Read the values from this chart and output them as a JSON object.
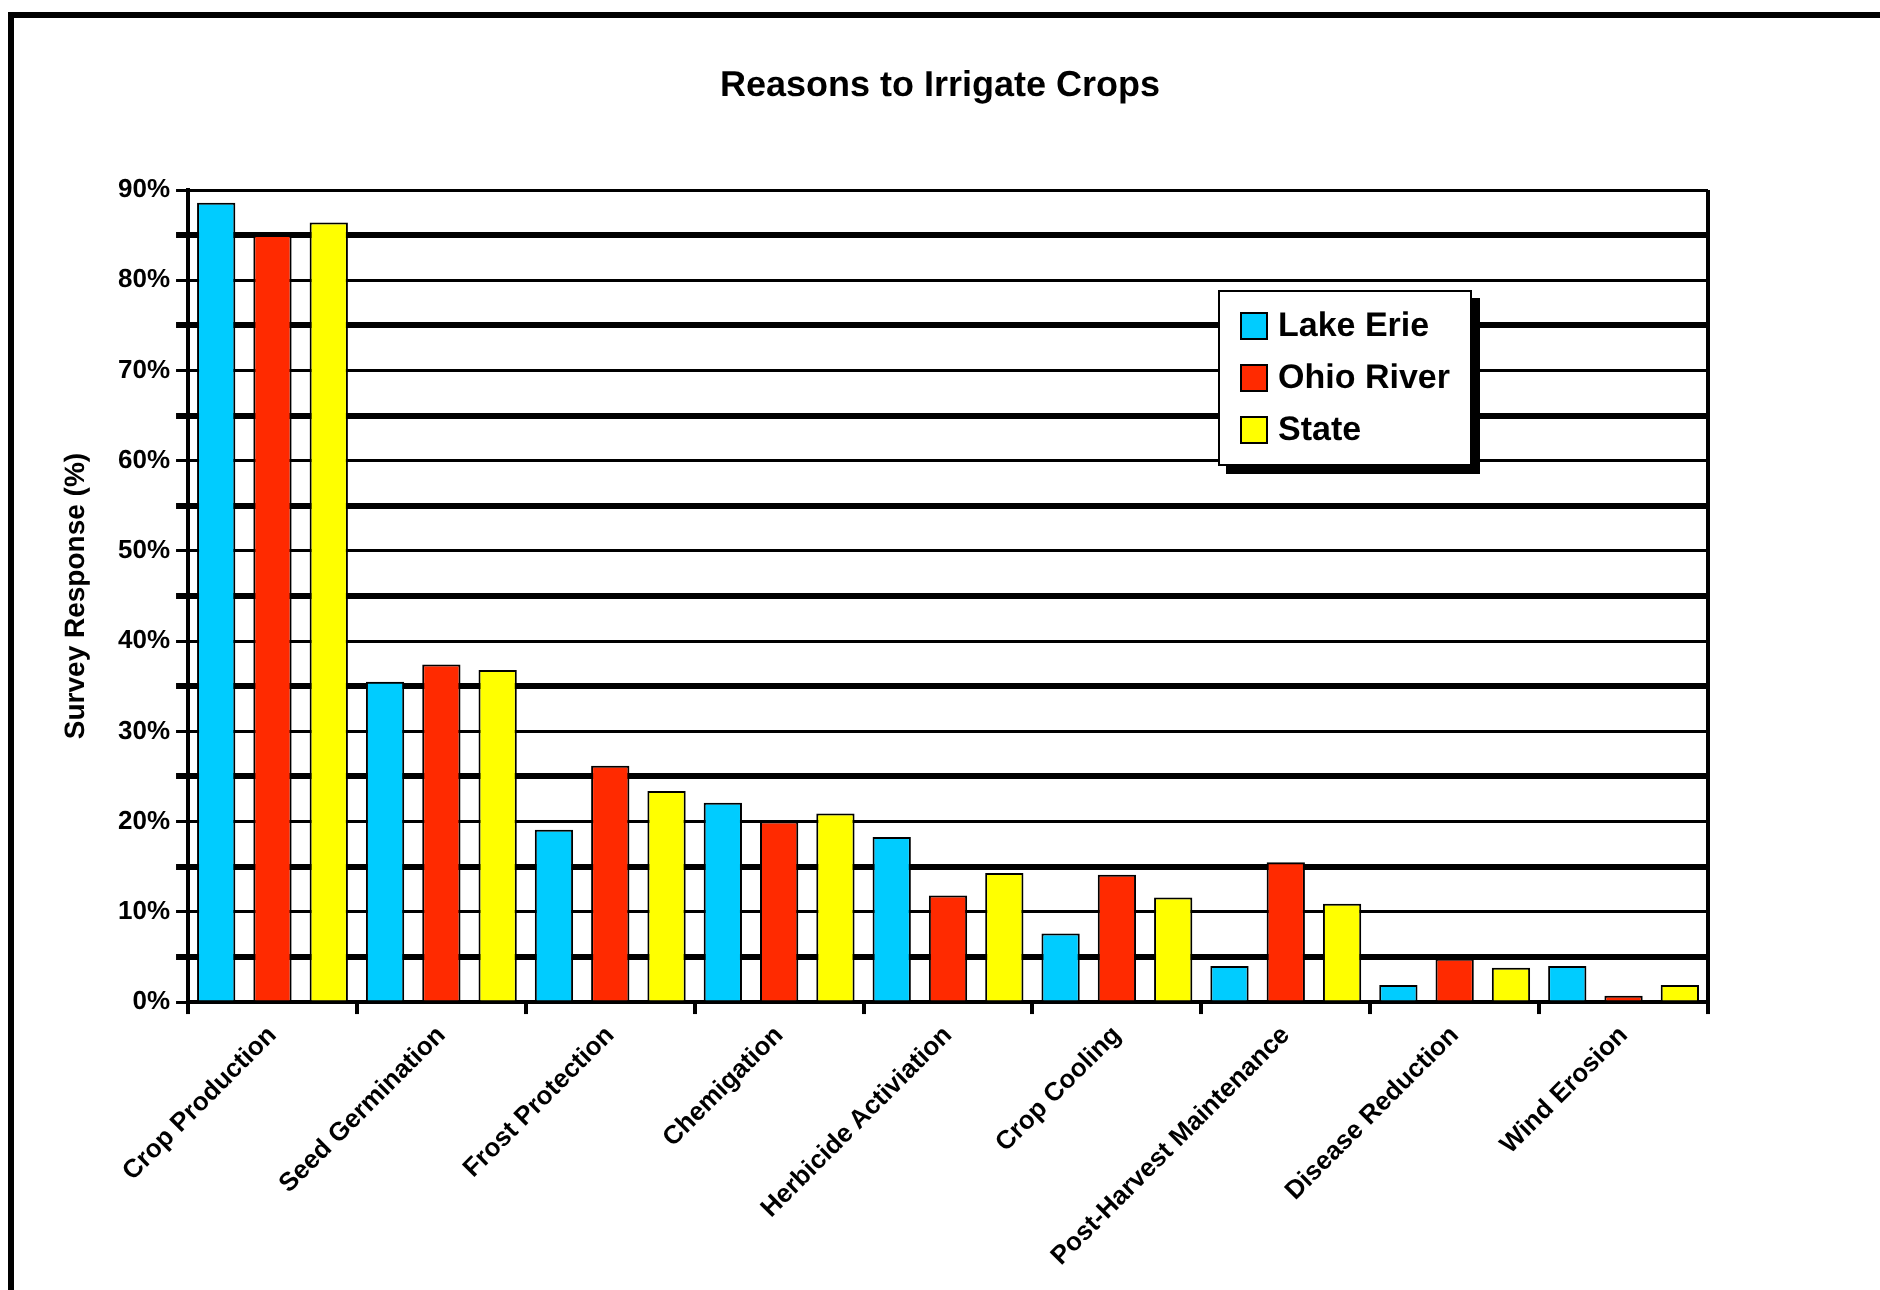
{
  "chart_data": {
    "type": "bar",
    "title": "Reasons to Irrigate Crops",
    "ylabel": "Survey Response (%)",
    "categories": [
      "Crop Production",
      "Seed Germination",
      "Frost Protection",
      "Chemigation",
      "Herbicide Activiation",
      "Crop Cooling",
      "Post-Harvest Maintenance",
      "Disease Reduction",
      "Wind Erosion"
    ],
    "series": [
      {
        "name": "Lake Erie",
        "color": "#00ccff",
        "values": [
          88.6,
          35.5,
          19.1,
          22.1,
          18.3,
          7.6,
          4.0,
          1.9,
          4.0
        ]
      },
      {
        "name": "Ohio River",
        "color": "#ff2a00",
        "values": [
          85.0,
          37.4,
          26.2,
          20.0,
          11.8,
          14.1,
          15.5,
          4.8,
          0.7
        ]
      },
      {
        "name": "State",
        "color": "#ffff00",
        "values": [
          86.4,
          36.8,
          23.4,
          20.9,
          14.3,
          11.6,
          10.9,
          3.8,
          1.9
        ]
      }
    ],
    "ylim": [
      0,
      90
    ],
    "yticks": [
      {
        "value": 0,
        "label": "0%"
      },
      {
        "value": 5,
        "label": null
      },
      {
        "value": 10,
        "label": "10%"
      },
      {
        "value": 15,
        "label": null
      },
      {
        "value": 20,
        "label": "20%"
      },
      {
        "value": 25,
        "label": null
      },
      {
        "value": 30,
        "label": "30%"
      },
      {
        "value": 35,
        "label": null
      },
      {
        "value": 40,
        "label": "40%"
      },
      {
        "value": 45,
        "label": null
      },
      {
        "value": 50,
        "label": "50%"
      },
      {
        "value": 55,
        "label": null
      },
      {
        "value": 60,
        "label": "60%"
      },
      {
        "value": 65,
        "label": null
      },
      {
        "value": 70,
        "label": "70%"
      },
      {
        "value": 75,
        "label": null
      },
      {
        "value": 80,
        "label": "80%"
      },
      {
        "value": 85,
        "label": null
      },
      {
        "value": 90,
        "label": "90%"
      }
    ],
    "grid": true,
    "legend": "top right"
  }
}
